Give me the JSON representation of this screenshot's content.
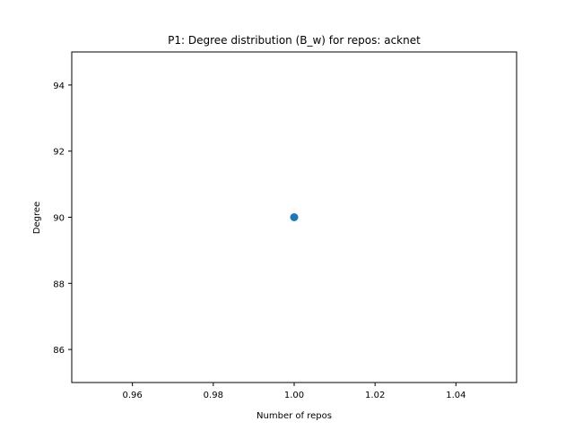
{
  "chart_data": {
    "type": "scatter",
    "title": "P1: Degree distribution (B_w) for repos: acknet",
    "xlabel": "Number of repos",
    "ylabel": "Degree",
    "xlim": [
      0.945,
      1.055
    ],
    "ylim": [
      85.0,
      95.0
    ],
    "x_ticks": [
      0.96,
      0.98,
      1.0,
      1.02,
      1.04
    ],
    "x_tick_labels": [
      "0.96",
      "0.98",
      "1.00",
      "1.02",
      "1.04"
    ],
    "y_ticks": [
      86,
      88,
      90,
      92,
      94
    ],
    "y_tick_labels": [
      "86",
      "88",
      "90",
      "92",
      "94"
    ],
    "grid": false,
    "series": [
      {
        "color": "#1f77b4",
        "points": [
          {
            "x": 1.0,
            "y": 90
          }
        ]
      }
    ]
  }
}
